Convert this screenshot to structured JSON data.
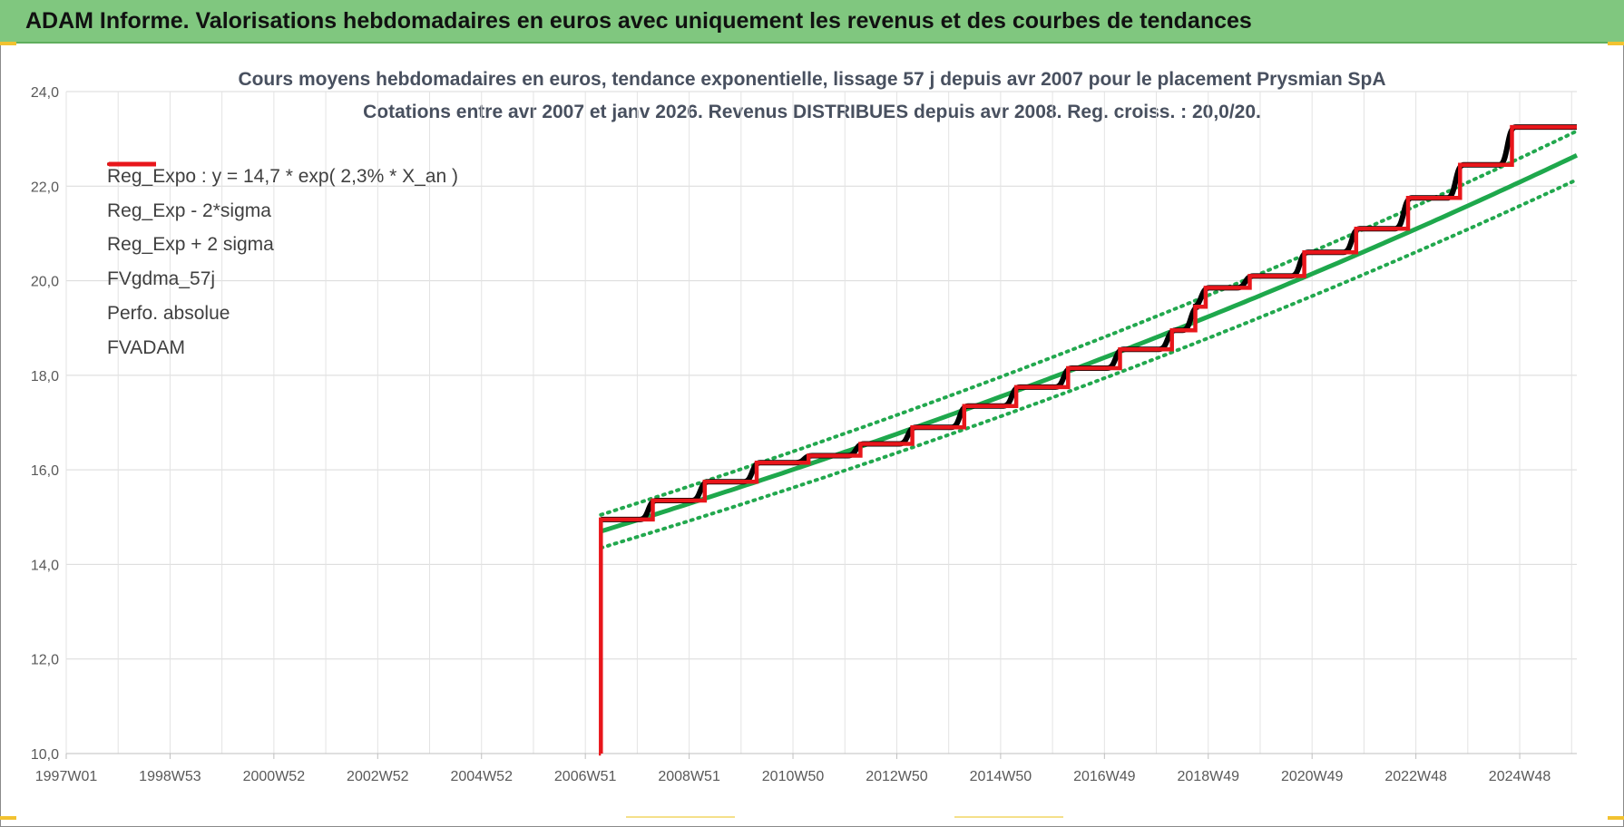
{
  "banner": {
    "title": "ADAM Informe. Valorisations hebdomadaires en euros avec uniquement les revenus et des courbes de tendances"
  },
  "colors": {
    "banner_bg": "#80c77f",
    "trend_green": "#1ea84c",
    "band_green": "#22a84e",
    "fv_black": "#000000",
    "fvadam_red": "#e8161b",
    "perf_red": "#e8161b",
    "grid": "#d9d9d9",
    "accent_corner": "#f2c230"
  },
  "chart_data": {
    "type": "line",
    "title": "Cours moyens hebdomadaires en euros, tendance exponentielle, lissage 57 j depuis avr 2007 pour le placement Prysmian SpA",
    "subtitle": "Cotations entre avr 2007 et janv 2026.  Revenus DISTRIBUES depuis avr 2008. Reg. croiss. : 20,0/20.",
    "x_tick_labels": [
      "1997W01",
      "1998W53",
      "2000W52",
      "2002W52",
      "2004W52",
      "2006W51",
      "2008W51",
      "2010W50",
      "2012W50",
      "2014W50",
      "2016W49",
      "2018W49",
      "2020W49",
      "2022W48",
      "2024W48"
    ],
    "x_tick_years": [
      1997.0,
      1999.0,
      2001.0,
      2003.0,
      2005.0,
      2007.0,
      2009.0,
      2011.0,
      2013.0,
      2015.0,
      2017.0,
      2019.0,
      2021.0,
      2023.0,
      2025.0
    ],
    "xlim": [
      1997.0,
      2026.1
    ],
    "ylim": [
      10,
      24
    ],
    "y_tick_labels": [
      "10,0",
      "12,0",
      "14,0",
      "16,0",
      "18,0",
      "20,0",
      "22,0",
      "24,0"
    ],
    "y_ticks": [
      10,
      12,
      14,
      16,
      18,
      20,
      22,
      24
    ],
    "grid": true,
    "legend_position": "top-left",
    "series": [
      {
        "name": "Reg_Expo : y = 14,7 * exp( 2,3% *  X_an )",
        "kind": "exp",
        "a": 14.7,
        "r": 0.023,
        "sigma_mult": 0,
        "x_start": 2007.3,
        "x_end": 2026.1,
        "color": "#1ea84c",
        "style": "solid",
        "width": 5
      },
      {
        "name": "Reg_Exp - 2*sigma",
        "kind": "exp",
        "a": 14.7,
        "r": 0.023,
        "sigma_mult": -1,
        "x_start": 2007.3,
        "x_end": 2026.1,
        "color": "#22a84e",
        "style": "dotted",
        "width": 4
      },
      {
        "name": "Reg_Exp + 2 sigma",
        "kind": "exp",
        "a": 14.7,
        "r": 0.023,
        "sigma_mult": 1,
        "x_start": 2007.3,
        "x_end": 2026.1,
        "color": "#22a84e",
        "style": "dotted",
        "width": 4
      },
      {
        "name": "FVgdma_57j",
        "kind": "smooth_step",
        "color": "#000000",
        "style": "solid",
        "width": 3
      },
      {
        "name": "Perfo. absolue",
        "kind": "none",
        "color": "#e8161b",
        "style": "dotted",
        "width": 3
      },
      {
        "name": "FVADAM",
        "kind": "step",
        "color": "#e8161b",
        "style": "solid",
        "width": 5
      }
    ],
    "band_sigma": 0.35,
    "fvadam_steps": [
      {
        "x": 2007.3,
        "y": 10.0
      },
      {
        "x": 2007.3,
        "y": 14.95
      },
      {
        "x": 2008.3,
        "y": 15.35
      },
      {
        "x": 2009.3,
        "y": 15.75
      },
      {
        "x": 2010.3,
        "y": 16.15
      },
      {
        "x": 2011.3,
        "y": 16.3
      },
      {
        "x": 2012.3,
        "y": 16.55
      },
      {
        "x": 2013.3,
        "y": 16.9
      },
      {
        "x": 2014.3,
        "y": 17.35
      },
      {
        "x": 2015.3,
        "y": 17.75
      },
      {
        "x": 2016.3,
        "y": 18.15
      },
      {
        "x": 2017.3,
        "y": 18.55
      },
      {
        "x": 2018.3,
        "y": 18.95
      },
      {
        "x": 2018.75,
        "y": 19.45
      },
      {
        "x": 2018.95,
        "y": 19.85
      },
      {
        "x": 2019.8,
        "y": 20.1
      },
      {
        "x": 2020.85,
        "y": 20.6
      },
      {
        "x": 2021.85,
        "y": 21.1
      },
      {
        "x": 2022.85,
        "y": 21.75
      },
      {
        "x": 2023.85,
        "y": 22.45
      },
      {
        "x": 2024.85,
        "y": 23.25
      }
    ],
    "fvadam_end_x": 2026.1
  }
}
